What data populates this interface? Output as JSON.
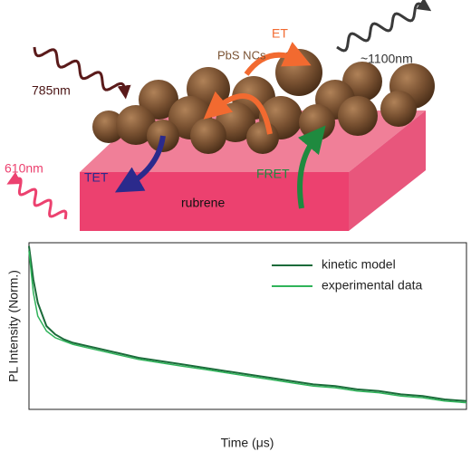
{
  "diagram": {
    "labels": {
      "excitation": "785nm",
      "nanocrystals": "PbS NCs",
      "energy_transfer": "ET",
      "emission_ir": "~1100nm",
      "emission_visible": "610nm",
      "triplet_transfer": "TET",
      "fret": "FRET",
      "substrate": "rubrene"
    }
  },
  "chart_data": {
    "type": "line",
    "x_label": "Time (μs)",
    "y_label": "PL Intensity (Norm.)",
    "x": [
      0,
      1,
      2,
      4,
      6,
      8,
      10,
      15,
      20,
      25,
      30,
      35,
      40,
      45,
      50,
      55,
      60,
      65,
      70,
      75,
      80,
      85,
      90,
      95,
      100
    ],
    "series": [
      {
        "name": "kinetic model",
        "color": "#1b6b3a",
        "values": [
          0.98,
          0.78,
          0.64,
          0.5,
          0.45,
          0.42,
          0.4,
          0.37,
          0.34,
          0.31,
          0.29,
          0.27,
          0.25,
          0.23,
          0.21,
          0.19,
          0.17,
          0.15,
          0.14,
          0.12,
          0.11,
          0.09,
          0.08,
          0.06,
          0.05
        ]
      },
      {
        "name": "experimental data",
        "color": "#2fb35a",
        "values": [
          0.95,
          0.7,
          0.56,
          0.47,
          0.43,
          0.41,
          0.39,
          0.36,
          0.33,
          0.3,
          0.28,
          0.26,
          0.24,
          0.22,
          0.2,
          0.18,
          0.16,
          0.14,
          0.13,
          0.11,
          0.1,
          0.08,
          0.07,
          0.05,
          0.04
        ]
      }
    ],
    "xlim": [
      0,
      100
    ],
    "ylim": [
      0,
      1
    ],
    "legend": "upper right"
  }
}
